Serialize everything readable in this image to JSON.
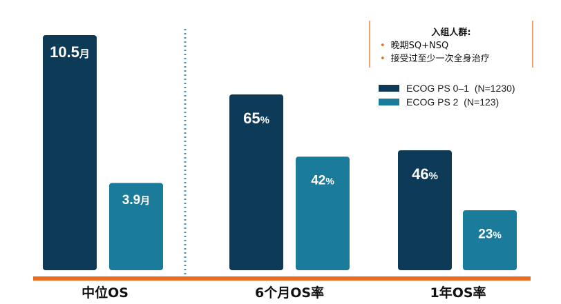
{
  "chart_data": {
    "type": "bar",
    "categories": [
      "中位OS",
      "6个月OS率",
      "1年OS率"
    ],
    "series": [
      {
        "name": "ECOG PS 0–1  (N=1230)",
        "color": "#0d3a57",
        "values": [
          10.5,
          65,
          46
        ],
        "labels": [
          "10.5",
          "65",
          "46"
        ],
        "units": [
          "月",
          "%",
          "%"
        ]
      },
      {
        "name": "ECOG PS 2  (N=123)",
        "color": "#1b7b9b",
        "values": [
          3.9,
          42,
          23
        ],
        "labels": [
          "3.9",
          "42",
          "23"
        ],
        "units": [
          "月",
          "%",
          "%"
        ]
      }
    ]
  },
  "info_box": {
    "title": "入组人群:",
    "items": [
      "晚期SQ+NSQ",
      "接受过至少一次全身治疗"
    ]
  },
  "colors": {
    "axis": "#ea6a1e",
    "divider": "#4a90c8"
  }
}
